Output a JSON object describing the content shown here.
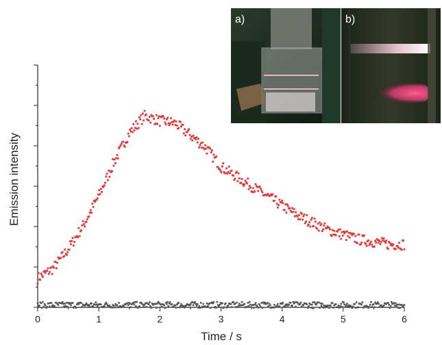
{
  "chart_data": {
    "type": "scatter",
    "title": "",
    "xlabel": "Time / s",
    "ylabel": "Emission intensity",
    "xlim": [
      0,
      6
    ],
    "ylim": [
      0,
      1.0
    ],
    "x_ticks": [
      0,
      1,
      2,
      3,
      4,
      5,
      6
    ],
    "y_tick_labels_shown": false,
    "grid": false,
    "legend": "none",
    "series": [
      {
        "color": "#e03a3a",
        "points": [
          [
            0.0,
            0.12
          ],
          [
            0.25,
            0.16
          ],
          [
            0.5,
            0.24
          ],
          [
            0.75,
            0.34
          ],
          [
            1.0,
            0.46
          ],
          [
            1.25,
            0.6
          ],
          [
            1.5,
            0.72
          ],
          [
            1.75,
            0.79
          ],
          [
            2.0,
            0.77
          ],
          [
            2.25,
            0.76
          ],
          [
            2.5,
            0.71
          ],
          [
            2.75,
            0.66
          ],
          [
            3.0,
            0.58
          ],
          [
            3.25,
            0.54
          ],
          [
            3.5,
            0.5
          ],
          [
            3.75,
            0.46
          ],
          [
            4.0,
            0.42
          ],
          [
            4.25,
            0.38
          ],
          [
            4.5,
            0.35
          ],
          [
            4.75,
            0.32
          ],
          [
            5.0,
            0.3
          ],
          [
            5.25,
            0.28
          ],
          [
            5.5,
            0.27
          ],
          [
            5.75,
            0.26
          ],
          [
            6.0,
            0.26
          ]
        ]
      },
      {
        "color": "#555555",
        "points": [
          [
            0.0,
            0.01
          ],
          [
            0.5,
            0.01
          ],
          [
            1.0,
            0.01
          ],
          [
            1.5,
            0.01
          ],
          [
            2.0,
            0.01
          ],
          [
            2.5,
            0.01
          ],
          [
            3.0,
            0.01
          ],
          [
            3.5,
            0.01
          ],
          [
            4.0,
            0.01
          ],
          [
            4.5,
            0.01
          ],
          [
            5.0,
            0.01
          ],
          [
            5.5,
            0.01
          ],
          [
            6.0,
            0.01
          ]
        ]
      }
    ],
    "inset": {
      "placement": "top-right",
      "panels": [
        {
          "label": "a)"
        },
        {
          "label": "b)"
        }
      ]
    }
  }
}
